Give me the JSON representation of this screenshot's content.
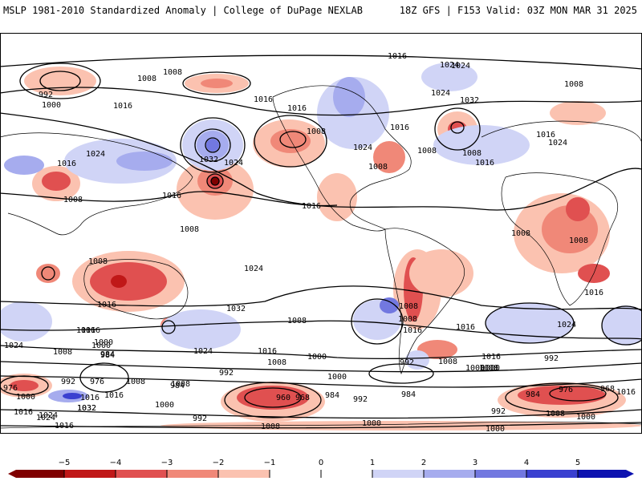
{
  "header": {
    "title_left": "MSLP 1981-2010 Standardized Anomaly | College of DuPage NEXLAB",
    "title_right": "18Z GFS | F153 Valid: 03Z MON MAR 31 2025"
  },
  "colors": {
    "neg5": "#7f0000",
    "neg4": "#c01818",
    "neg3": "#e05050",
    "neg2": "#f08878",
    "neg1": "#fbc2b0",
    "zero": "#ffffff",
    "pos1": "#d0d4f6",
    "pos2": "#a6acee",
    "pos3": "#7278e0",
    "pos4": "#3a40d0",
    "pos5": "#0d12b0"
  },
  "colorbar": {
    "ticks": [
      "−5",
      "−4",
      "−3",
      "−2",
      "−1",
      "0",
      "1",
      "2",
      "3",
      "4",
      "5"
    ]
  },
  "isobar_labels": [
    "1016",
    "1024",
    "1008",
    "992",
    "1000",
    "1016",
    "1008",
    "1024",
    "1024",
    "1032",
    "1008",
    "1016",
    "1008",
    "1008",
    "1016",
    "1032",
    "1024",
    "1016",
    "1008",
    "1024",
    "1016",
    "1008",
    "1016",
    "1024",
    "1016",
    "1008",
    "1016",
    "1024",
    "1016",
    "1008",
    "1008",
    "1016",
    "1032",
    "1024",
    "1008",
    "1016",
    "1008",
    "1016",
    "1024",
    "1008",
    "1000",
    "1016",
    "1008",
    "1008",
    "1016",
    "1016",
    "1024",
    "1000",
    "1008",
    "1016",
    "1024",
    "1016",
    "1008",
    "1000",
    "984",
    "992",
    "1000",
    "1008",
    "1016",
    "1008",
    "984",
    "992",
    "1000",
    "976",
    "992",
    "1000",
    "1016",
    "1024",
    "1032",
    "976",
    "984",
    "1008",
    "1000",
    "1008",
    "984",
    "960",
    "968",
    "992",
    "992",
    "984",
    "1000",
    "992",
    "1008",
    "1000",
    "984",
    "976",
    "968",
    "1016",
    "1000",
    "992",
    "1008",
    "1000",
    "1024",
    "1016",
    "1016",
    "1032"
  ]
}
